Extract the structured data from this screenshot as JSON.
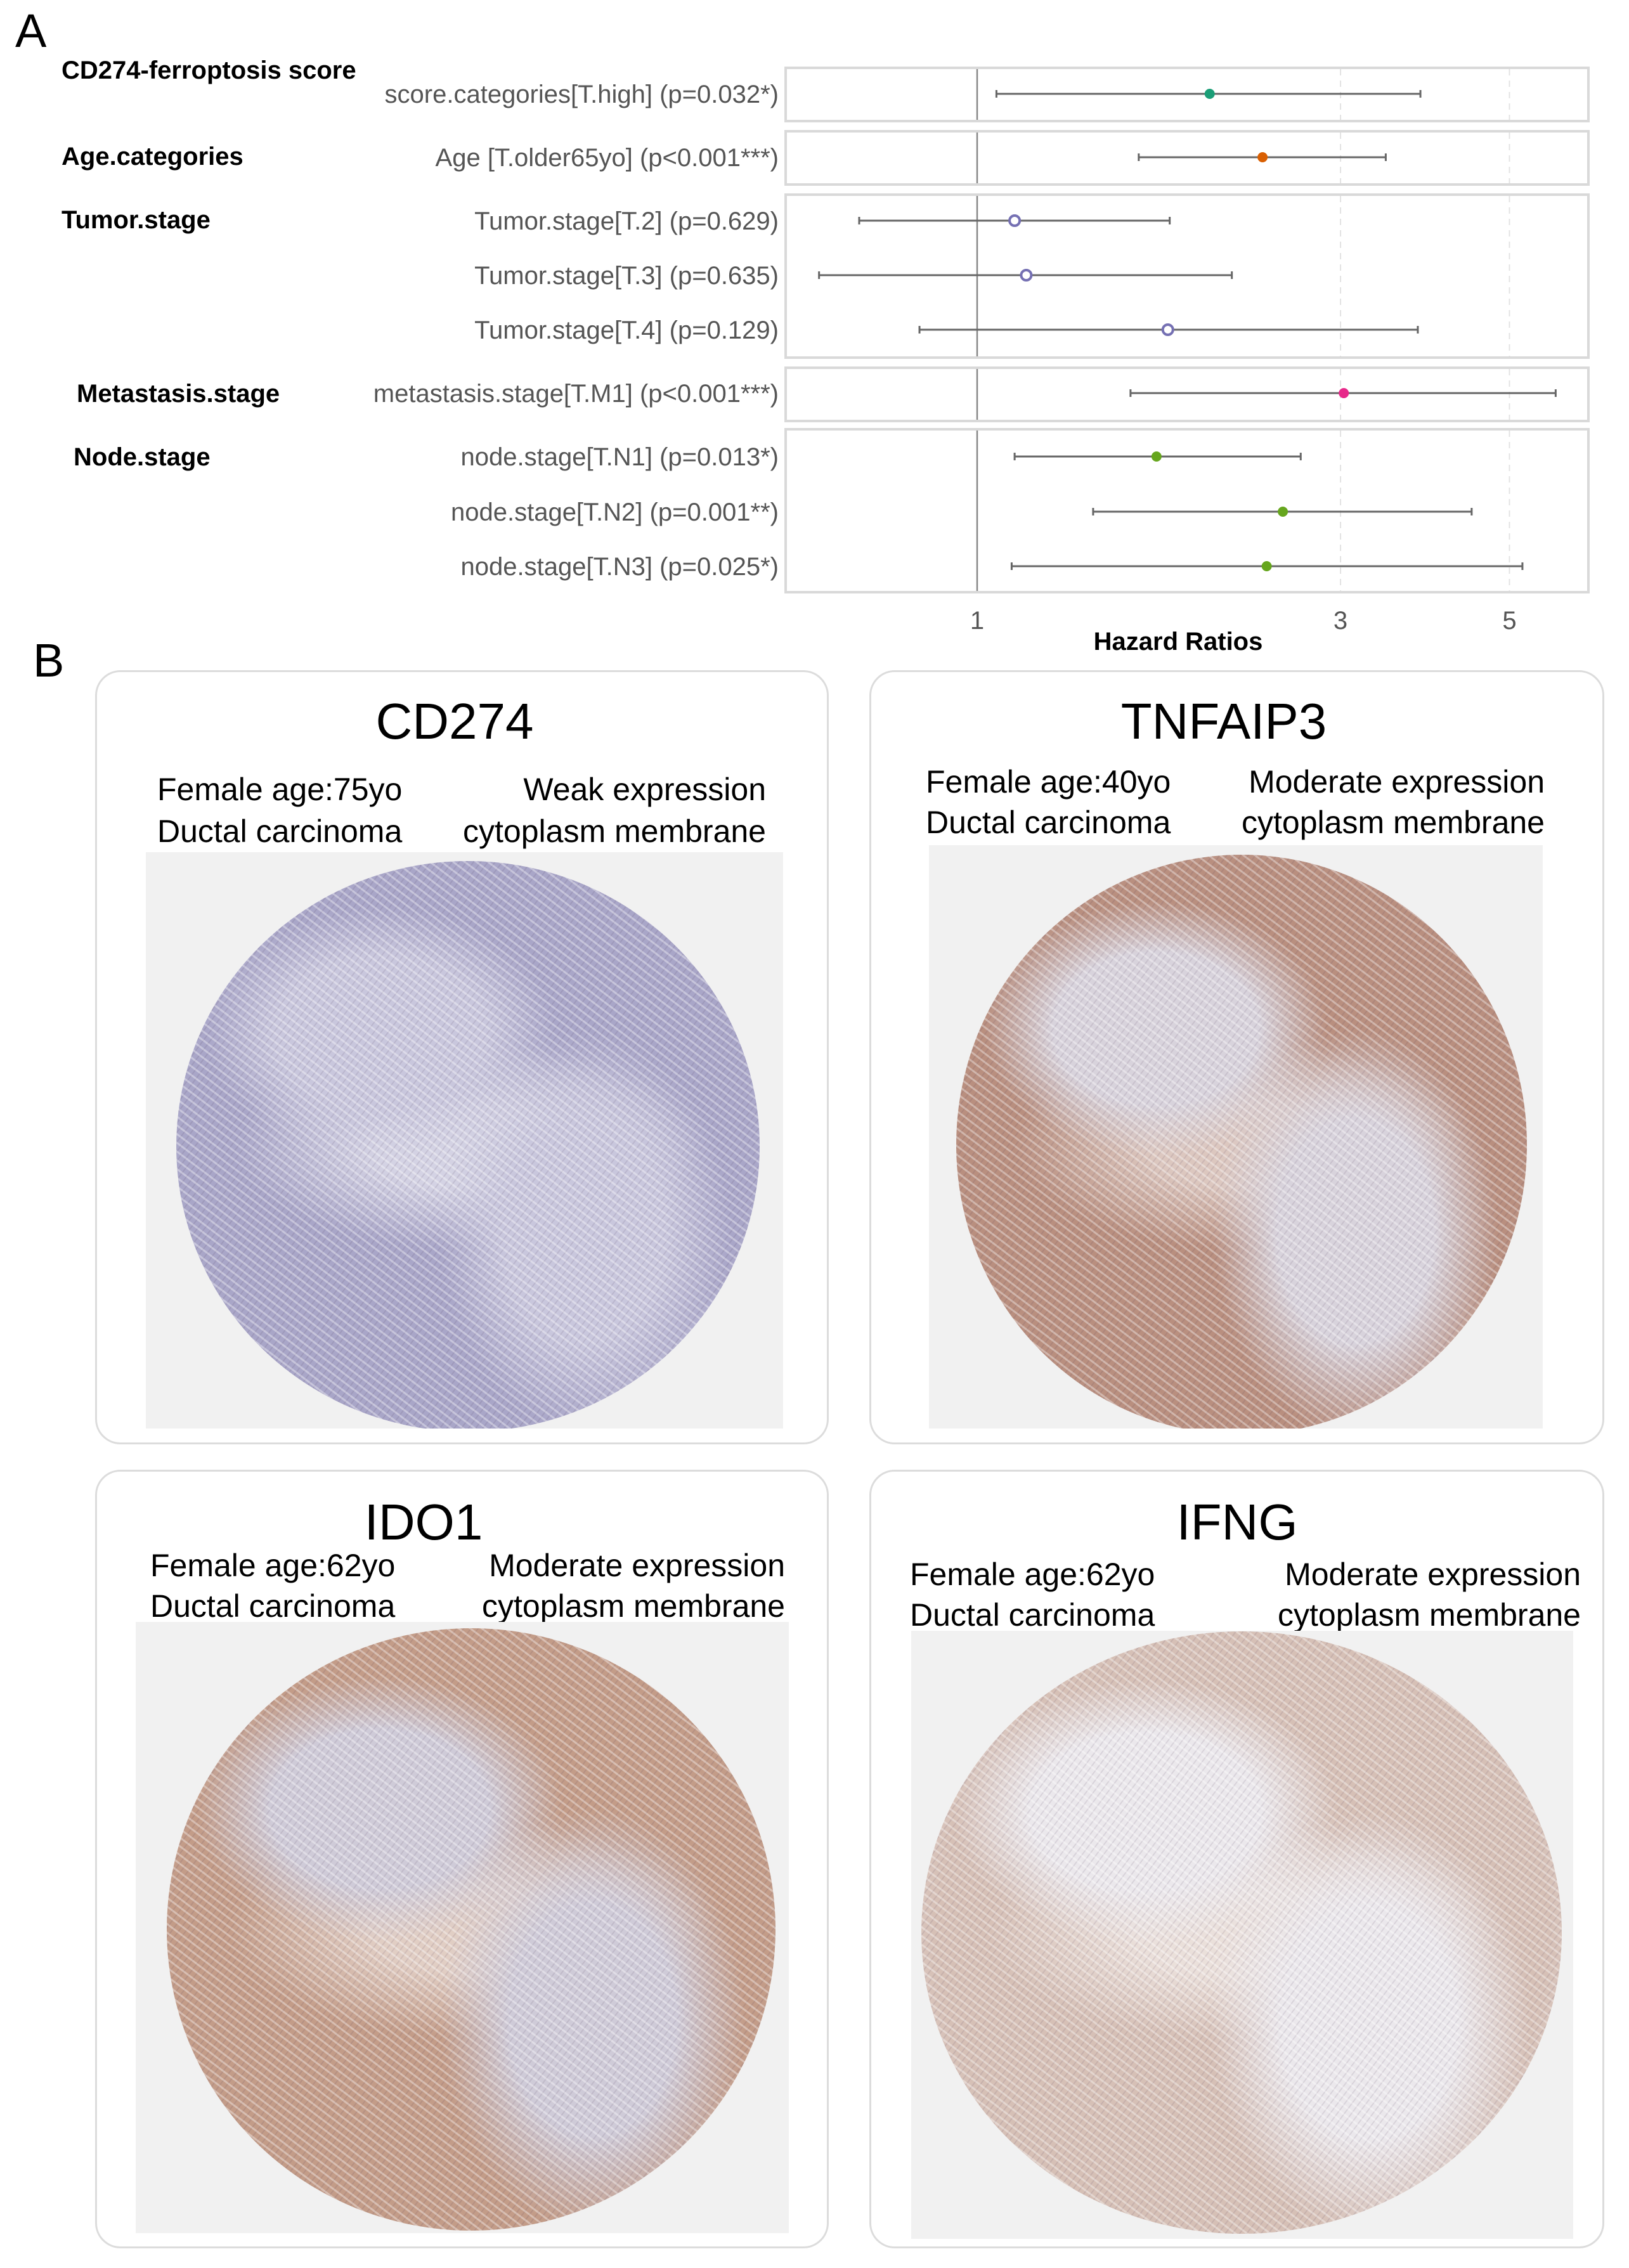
{
  "panel_a": {
    "letter": "A"
  },
  "panel_b": {
    "letter": "B",
    "cards": [
      {
        "gene": "CD274",
        "sex_age": "Female age:75yo",
        "expression": "Weak expression",
        "histology": "Ductal carcinoma",
        "location": "cytoplasm membrane",
        "stain_color": "#a9a6c8",
        "stroma_color": "#c9c7dd"
      },
      {
        "gene": "TNFAIP3",
        "sex_age": "Female age:40yo",
        "expression": "Moderate expression",
        "histology": "Ductal carcinoma",
        "location": "cytoplasm membrane",
        "stain_color": "#b98f7f",
        "stroma_color": "#d8d3dc"
      },
      {
        "gene": "IDO1",
        "sex_age": "Female age:62yo",
        "expression": "Moderate expression",
        "histology": "Ductal carcinoma",
        "location": "cytoplasm membrane",
        "stain_color": "#c39c88",
        "stroma_color": "#cfcbd8"
      },
      {
        "gene": "IFNG",
        "sex_age": "Female age:62yo",
        "expression": "Moderate expression",
        "histology": "Ductal carcinoma",
        "location": "cytoplasm membrane",
        "stain_color": "#d6c0b6",
        "stroma_color": "#ebe8ec"
      }
    ]
  },
  "chart_data": {
    "type": "forest",
    "xlabel": "Hazard Ratios",
    "x_scale": "log",
    "xlim": [
      0.56,
      6.4
    ],
    "ticks": [
      1,
      3,
      5
    ],
    "reference_line": 1,
    "grid": "dashed at 3 and 5",
    "groups": [
      {
        "name": "CD274-ferroptosis score",
        "rows": [
          {
            "label": "score.categories[T.high] (p=0.032*)",
            "hr": 2.02,
            "lower": 1.06,
            "upper": 3.82,
            "color": "#1B9E77",
            "marker": "filled"
          }
        ]
      },
      {
        "name": "Age.categories",
        "rows": [
          {
            "label": "Age [T.older65yo] (p<0.001***)",
            "hr": 2.37,
            "lower": 1.63,
            "upper": 3.44,
            "color": "#D95F02",
            "marker": "filled"
          }
        ]
      },
      {
        "name": "Tumor.stage",
        "rows": [
          {
            "label": "Tumor.stage[T.2] (p=0.629)",
            "hr": 1.12,
            "lower": 0.7,
            "upper": 1.79,
            "color": "#7570B3",
            "marker": "open"
          },
          {
            "label": "Tumor.stage[T.3] (p=0.635)",
            "hr": 1.16,
            "lower": 0.62,
            "upper": 2.16,
            "color": "#7570B3",
            "marker": "open"
          },
          {
            "label": "Tumor.stage[T.4] (p=0.129)",
            "hr": 1.78,
            "lower": 0.84,
            "upper": 3.79,
            "color": "#7570B3",
            "marker": "open"
          }
        ]
      },
      {
        "name": "Metastasis.stage",
        "rows": [
          {
            "label": "metastasis.stage[T.M1] (p<0.001***)",
            "hr": 3.03,
            "lower": 1.59,
            "upper": 5.75,
            "color": "#E7298A",
            "marker": "filled"
          }
        ]
      },
      {
        "name": "Node.stage",
        "rows": [
          {
            "label": "node.stage[T.N1] (p=0.013*)",
            "hr": 1.72,
            "lower": 1.12,
            "upper": 2.66,
            "color": "#66A61E",
            "marker": "filled"
          },
          {
            "label": "node.stage[T.N2] (p=0.001**)",
            "hr": 2.52,
            "lower": 1.42,
            "upper": 4.46,
            "color": "#66A61E",
            "marker": "filled"
          },
          {
            "label": "node.stage[T.N3] (p=0.025*)",
            "hr": 2.4,
            "lower": 1.11,
            "upper": 5.2,
            "color": "#66A61E",
            "marker": "filled"
          }
        ]
      }
    ]
  }
}
